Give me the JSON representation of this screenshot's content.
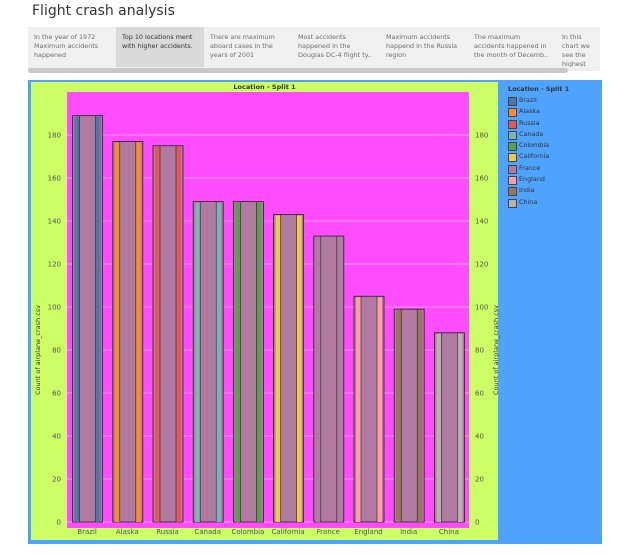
{
  "page": {
    "title": "Flight crash analysis"
  },
  "story": {
    "points": [
      {
        "text": "In the year of 1972 Maximum accidents happened",
        "active": false
      },
      {
        "text": "Top 10 locations  ment with higher accidents.",
        "active": true
      },
      {
        "text": "There are maximum aboard cases in the years of 2001",
        "active": false
      },
      {
        "text": "Most accidents happened in the Douglas DC-4 flight ty..",
        "active": false
      },
      {
        "text": "Maximum accidents happend  in the Russia region",
        "active": false
      },
      {
        "text": "The maximum accidents happened in the month of Decemb..",
        "active": false
      },
      {
        "text": "In this chart we see the highest num..",
        "active": false
      }
    ]
  },
  "chart_data": {
    "type": "bar",
    "title": "Location - Split 1",
    "categories": [
      "Brazil",
      "Alaska",
      "Russia",
      "Canada",
      "Colombia",
      "California",
      "France",
      "England",
      "India",
      "China"
    ],
    "values": [
      189,
      177,
      175,
      149,
      149,
      143,
      133,
      105,
      99,
      88
    ],
    "ylabel": "Count of airplane_crash.csv",
    "ylabel_right": "Count of airplane_crash.csv",
    "ylim": [
      0,
      200
    ],
    "yticks": [
      0,
      20,
      40,
      60,
      80,
      100,
      120,
      140,
      160,
      180
    ],
    "grid": true,
    "legend_position": "right",
    "colors": [
      "#4e79a7",
      "#f28e2b",
      "#e15759",
      "#76b7b2",
      "#59a14f",
      "#edc948",
      "#b07aa1",
      "#ff9da7",
      "#9c755f",
      "#bab0ac"
    ],
    "bar_fill": "#b07aa1",
    "plot_background": "#ff4cff",
    "frame_background": "#ccff66",
    "dashboard_background": "#4ea3ff",
    "legend": {
      "title": "Location - Split 1",
      "items": [
        "Brazil",
        "Alaska",
        "Russia",
        "Canada",
        "Colombia",
        "California",
        "France",
        "England",
        "India",
        "China"
      ]
    }
  }
}
